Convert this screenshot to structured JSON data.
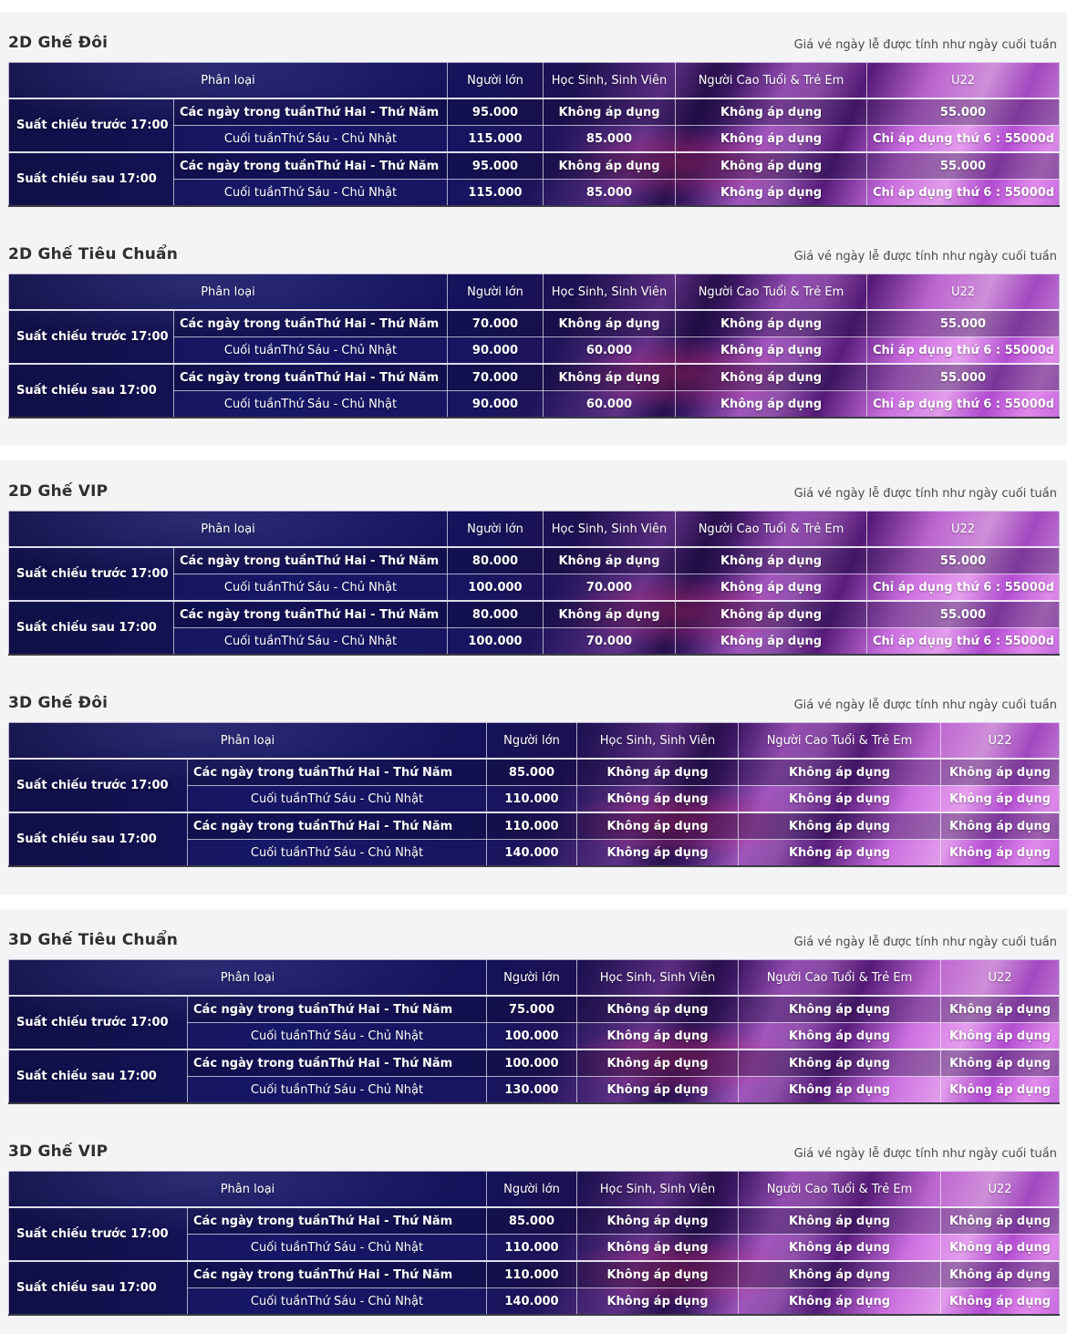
{
  "holiday_note": "Giá vé ngày lễ được tính như ngày cuối tuần",
  "columns": [
    "Phân loại",
    "Người lớn",
    "Học Sinh, Sinh Viên",
    "Người Cao Tuổi & Trẻ Em",
    "U22"
  ],
  "theme": {
    "section_bg": "#f4f4f6",
    "table_navy": "#17175e",
    "table_magenta": "#c74ad6",
    "title_color": "#2f2f2f",
    "note_color": "#4a4a4a",
    "table_text": "#ffffff"
  },
  "sections": [
    {
      "title": "2D Ghế Đôi",
      "layout": "2d",
      "groups": [
        {
          "label": "Suất chiếu trước 17:00",
          "rows": [
            {
              "label": "Các ngày trong tuầnThứ Hai - Thứ Năm",
              "values": [
                "95.000",
                "Không áp dụng",
                "Không áp dụng",
                "55.000"
              ]
            },
            {
              "label": "Cuối tuầnThứ Sáu - Chủ Nhật",
              "values": [
                "115.000",
                "85.000",
                "Không áp dụng",
                "Chỉ áp dụng thứ 6 : 55000d"
              ]
            }
          ]
        },
        {
          "label": "Suất chiếu sau 17:00",
          "rows": [
            {
              "label": "Các ngày trong tuầnThứ Hai - Thứ Năm",
              "values": [
                "95.000",
                "Không áp dụng",
                "Không áp dụng",
                "55.000"
              ]
            },
            {
              "label": "Cuối tuầnThứ Sáu - Chủ Nhật",
              "values": [
                "115.000",
                "85.000",
                "Không áp dụng",
                "Chỉ áp dụng thứ 6 : 55000d"
              ]
            }
          ]
        }
      ]
    },
    {
      "title": "2D Ghế Tiêu Chuẩn",
      "layout": "2d",
      "groups": [
        {
          "label": "Suất chiếu trước 17:00",
          "rows": [
            {
              "label": "Các ngày trong tuầnThứ Hai - Thứ Năm",
              "values": [
                "70.000",
                "Không áp dụng",
                "Không áp dụng",
                "55.000"
              ]
            },
            {
              "label": "Cuối tuầnThứ Sáu - Chủ Nhật",
              "values": [
                "90.000",
                "60.000",
                "Không áp dụng",
                "Chỉ áp dụng thứ 6 : 55000d"
              ]
            }
          ]
        },
        {
          "label": "Suất chiếu sau 17:00",
          "rows": [
            {
              "label": "Các ngày trong tuầnThứ Hai - Thứ Năm",
              "values": [
                "70.000",
                "Không áp dụng",
                "Không áp dụng",
                "55.000"
              ]
            },
            {
              "label": "Cuối tuầnThứ Sáu - Chủ Nhật",
              "values": [
                "90.000",
                "60.000",
                "Không áp dụng",
                "Chỉ áp dụng thứ 6 : 55000d"
              ]
            }
          ]
        }
      ]
    },
    {
      "title": "2D Ghế VIP",
      "layout": "2d",
      "groups": [
        {
          "label": "Suất chiếu trước 17:00",
          "rows": [
            {
              "label": "Các ngày trong tuầnThứ Hai - Thứ Năm",
              "values": [
                "80.000",
                "Không áp dụng",
                "Không áp dụng",
                "55.000"
              ]
            },
            {
              "label": "Cuối tuầnThứ Sáu - Chủ Nhật",
              "values": [
                "100.000",
                "70.000",
                "Không áp dụng",
                "Chỉ áp dụng thứ 6 : 55000d"
              ]
            }
          ]
        },
        {
          "label": "Suất chiếu sau 17:00",
          "rows": [
            {
              "label": "Các ngày trong tuầnThứ Hai - Thứ Năm",
              "values": [
                "80.000",
                "Không áp dụng",
                "Không áp dụng",
                "55.000"
              ]
            },
            {
              "label": "Cuối tuầnThứ Sáu - Chủ Nhật",
              "values": [
                "100.000",
                "70.000",
                "Không áp dụng",
                "Chỉ áp dụng thứ 6 : 55000d"
              ]
            }
          ]
        }
      ]
    },
    {
      "title": "3D Ghế Đôi",
      "layout": "3d",
      "groups": [
        {
          "label": "Suất chiếu trước 17:00",
          "rows": [
            {
              "label": "Các ngày trong tuầnThứ Hai - Thứ Năm",
              "values": [
                "85.000",
                "Không áp dụng",
                "Không áp dụng",
                "Không áp dụng"
              ]
            },
            {
              "label": "Cuối tuầnThứ Sáu - Chủ Nhật",
              "values": [
                "110.000",
                "Không áp dụng",
                "Không áp dụng",
                "Không áp dụng"
              ]
            }
          ]
        },
        {
          "label": "Suất chiếu sau 17:00",
          "rows": [
            {
              "label": "Các ngày trong tuầnThứ Hai - Thứ Năm",
              "values": [
                "110.000",
                "Không áp dụng",
                "Không áp dụng",
                "Không áp dụng"
              ]
            },
            {
              "label": "Cuối tuầnThứ Sáu - Chủ Nhật",
              "values": [
                "140.000",
                "Không áp dụng",
                "Không áp dụng",
                "Không áp dụng"
              ]
            }
          ]
        }
      ]
    },
    {
      "title": "3D Ghế Tiêu Chuẩn",
      "layout": "3d",
      "groups": [
        {
          "label": "Suất chiếu trước 17:00",
          "rows": [
            {
              "label": "Các ngày trong tuầnThứ Hai - Thứ Năm",
              "values": [
                "75.000",
                "Không áp dụng",
                "Không áp dụng",
                "Không áp dụng"
              ]
            },
            {
              "label": "Cuối tuầnThứ Sáu - Chủ Nhật",
              "values": [
                "100.000",
                "Không áp dụng",
                "Không áp dụng",
                "Không áp dụng"
              ]
            }
          ]
        },
        {
          "label": "Suất chiếu sau 17:00",
          "rows": [
            {
              "label": "Các ngày trong tuầnThứ Hai - Thứ Năm",
              "values": [
                "100.000",
                "Không áp dụng",
                "Không áp dụng",
                "Không áp dụng"
              ]
            },
            {
              "label": "Cuối tuầnThứ Sáu - Chủ Nhật",
              "values": [
                "130.000",
                "Không áp dụng",
                "Không áp dụng",
                "Không áp dụng"
              ]
            }
          ]
        }
      ]
    },
    {
      "title": "3D Ghế VIP",
      "layout": "3d",
      "groups": [
        {
          "label": "Suất chiếu trước 17:00",
          "rows": [
            {
              "label": "Các ngày trong tuầnThứ Hai - Thứ Năm",
              "values": [
                "85.000",
                "Không áp dụng",
                "Không áp dụng",
                "Không áp dụng"
              ]
            },
            {
              "label": "Cuối tuầnThứ Sáu - Chủ Nhật",
              "values": [
                "110.000",
                "Không áp dụng",
                "Không áp dụng",
                "Không áp dụng"
              ]
            }
          ]
        },
        {
          "label": "Suất chiếu sau 17:00",
          "rows": [
            {
              "label": "Các ngày trong tuầnThứ Hai - Thứ Năm",
              "values": [
                "110.000",
                "Không áp dụng",
                "Không áp dụng",
                "Không áp dụng"
              ]
            },
            {
              "label": "Cuối tuầnThứ Sáu - Chủ Nhật",
              "values": [
                "140.000",
                "Không áp dụng",
                "Không áp dụng",
                "Không áp dụng"
              ]
            }
          ]
        }
      ]
    }
  ]
}
